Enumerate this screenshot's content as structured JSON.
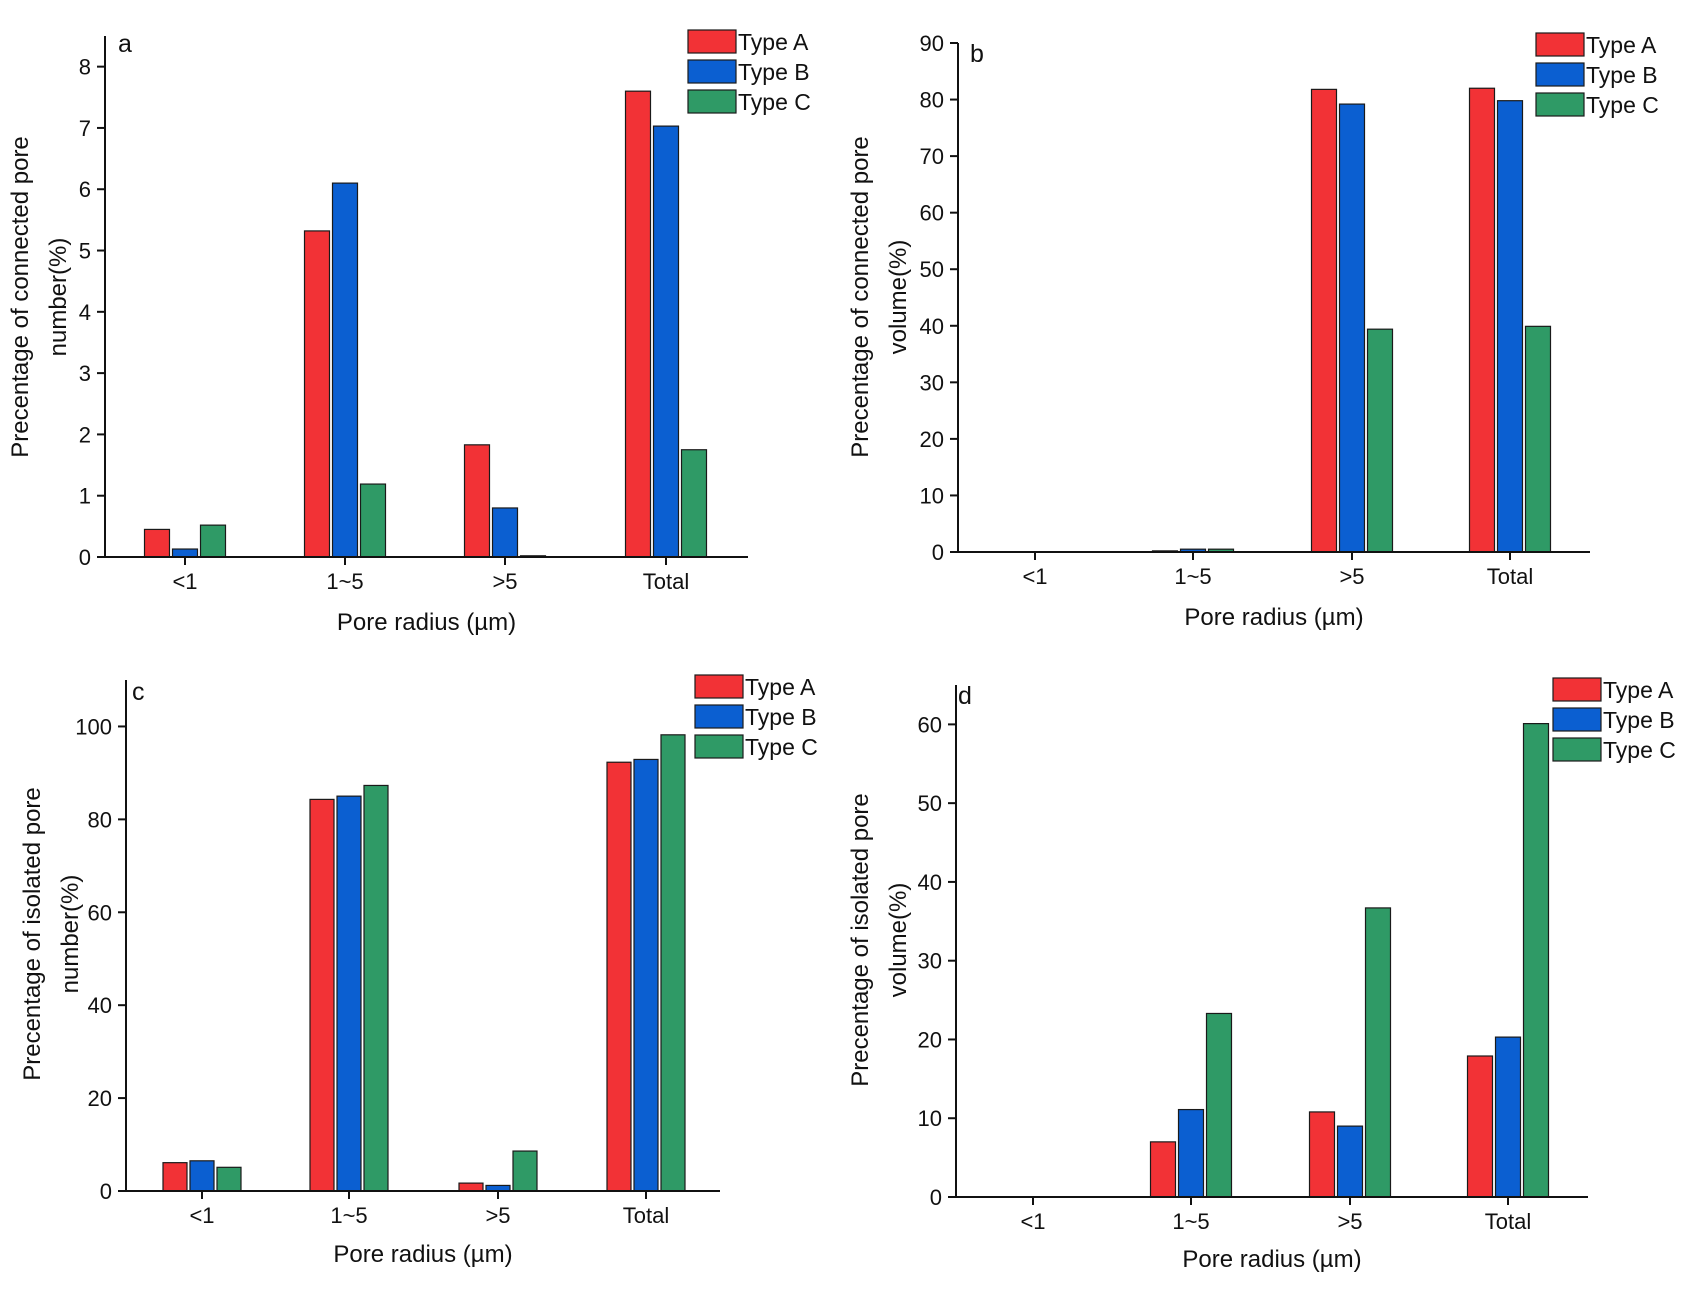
{
  "figure": {
    "description_title": ""
  },
  "series_colors": {
    "Type A": "#f23236",
    "Type B": "#0b5fd1",
    "Type C": "#2f9a66"
  },
  "chart_data": [
    {
      "type": "bar",
      "panel": "a",
      "title": "",
      "xlabel": "Pore radius (µm)",
      "ylabel_lines": [
        "Precentage of connected pore",
        "number(%)"
      ],
      "categories": [
        "<1",
        "1~5",
        ">5",
        "Total"
      ],
      "ylim": [
        0,
        8.5
      ],
      "yticks": [
        0,
        1,
        2,
        3,
        4,
        5,
        6,
        7,
        8
      ],
      "legend": "top-right",
      "series": [
        {
          "name": "Type A",
          "values": [
            0.45,
            5.32,
            1.83,
            7.6
          ]
        },
        {
          "name": "Type B",
          "values": [
            0.13,
            6.1,
            0.8,
            7.03
          ]
        },
        {
          "name": "Type C",
          "values": [
            0.52,
            1.19,
            0.02,
            1.75
          ]
        }
      ]
    },
    {
      "type": "bar",
      "panel": "b",
      "title": "",
      "xlabel": "Pore radius (µm)",
      "ylabel_lines": [
        "Precentage of connected pore",
        "volume(%)"
      ],
      "categories": [
        "<1",
        "1~5",
        ">5",
        "Total"
      ],
      "ylim": [
        0,
        90
      ],
      "yticks": [
        0,
        10,
        20,
        30,
        40,
        50,
        60,
        70,
        80,
        90
      ],
      "legend": "top-right",
      "series": [
        {
          "name": "Type A",
          "values": [
            0,
            0.2,
            81.8,
            82
          ]
        },
        {
          "name": "Type B",
          "values": [
            0,
            0.5,
            79.2,
            79.8
          ]
        },
        {
          "name": "Type C",
          "values": [
            0,
            0.5,
            39.4,
            39.9
          ]
        }
      ]
    },
    {
      "type": "bar",
      "panel": "c",
      "title": "",
      "xlabel": "Pore radius (µm)",
      "ylabel_lines": [
        "Precentage of isolated pore",
        "number(%)"
      ],
      "categories": [
        "<1",
        "1~5",
        ">5",
        "Total"
      ],
      "ylim": [
        0,
        110
      ],
      "yticks": [
        0,
        20,
        40,
        60,
        80,
        100
      ],
      "legend": "top-right",
      "series": [
        {
          "name": "Type A",
          "values": [
            6.1,
            84.3,
            1.7,
            92.3
          ]
        },
        {
          "name": "Type B",
          "values": [
            6.5,
            85,
            1.2,
            92.9
          ]
        },
        {
          "name": "Type C",
          "values": [
            5.1,
            87.3,
            8.6,
            98.2
          ]
        }
      ]
    },
    {
      "type": "bar",
      "panel": "d",
      "title": "",
      "xlabel": "Pore radius (µm)",
      "ylabel_lines": [
        "Precentage of isolated pore",
        "volume(%)"
      ],
      "categories": [
        "<1",
        "1~5",
        ">5",
        "Total"
      ],
      "ylim": [
        0,
        65
      ],
      "yticks": [
        0,
        10,
        20,
        30,
        40,
        50,
        60
      ],
      "legend": "top-right",
      "series": [
        {
          "name": "Type A",
          "values": [
            0,
            7,
            10.8,
            17.9
          ]
        },
        {
          "name": "Type B",
          "values": [
            0,
            11.1,
            9,
            20.3
          ]
        },
        {
          "name": "Type C",
          "values": [
            0,
            23.3,
            36.7,
            60.1
          ]
        }
      ]
    }
  ]
}
